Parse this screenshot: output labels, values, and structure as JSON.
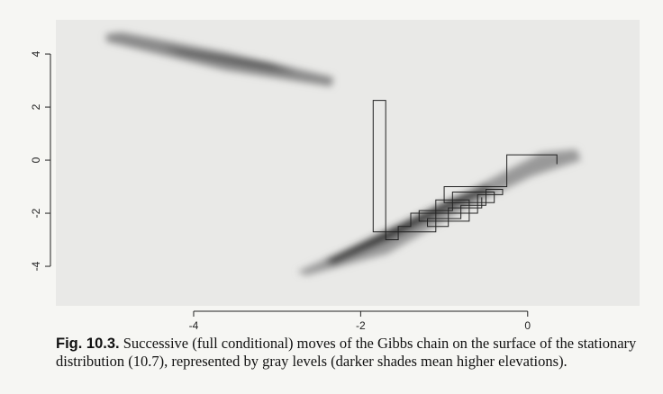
{
  "chart_data": {
    "type": "line",
    "caption_label": "Fig. 10.3.",
    "caption": "Successive (full conditional) moves of the Gibbs chain on the surface of the stationary distribution (10.7), represented by gray levels (darker shades mean higher elevations).",
    "x": [
      0.35,
      0.35,
      -0.25,
      -0.25,
      -1.0,
      -1.0,
      -0.4,
      -0.4,
      -0.9,
      -0.9,
      -1.3,
      -1.3,
      -0.7,
      -0.7,
      -1.1,
      -1.1,
      -1.85,
      -1.85,
      -1.7,
      -1.7,
      -1.55,
      -1.55,
      -1.4,
      -1.4,
      -0.6,
      -0.6,
      -0.3,
      -0.3,
      -0.5,
      -0.5,
      -0.8,
      -0.8,
      -1.2,
      -1.2,
      -0.95,
      -0.95,
      -0.55,
      -0.55
    ],
    "values": [
      -0.15,
      0.2,
      0.2,
      -1.0,
      -1.0,
      -1.6,
      -1.6,
      -1.2,
      -1.2,
      -1.9,
      -1.9,
      -2.3,
      -2.3,
      -1.5,
      -1.5,
      -2.7,
      -2.7,
      2.25,
      2.25,
      -3.0,
      -3.0,
      -2.5,
      -2.5,
      -2.0,
      -2.0,
      -1.3,
      -1.3,
      -1.1,
      -1.1,
      -1.7,
      -1.7,
      -2.2,
      -2.2,
      -2.5,
      -2.5,
      -1.8,
      -1.8,
      -1.4
    ],
    "color": "#222222",
    "xlim": [
      -5.65,
      1.34
    ],
    "ylim": [
      -5.49,
      5.29
    ],
    "xticks": [
      -4,
      -2,
      0
    ],
    "yticks": [
      -4,
      -2,
      0,
      2,
      4
    ]
  }
}
